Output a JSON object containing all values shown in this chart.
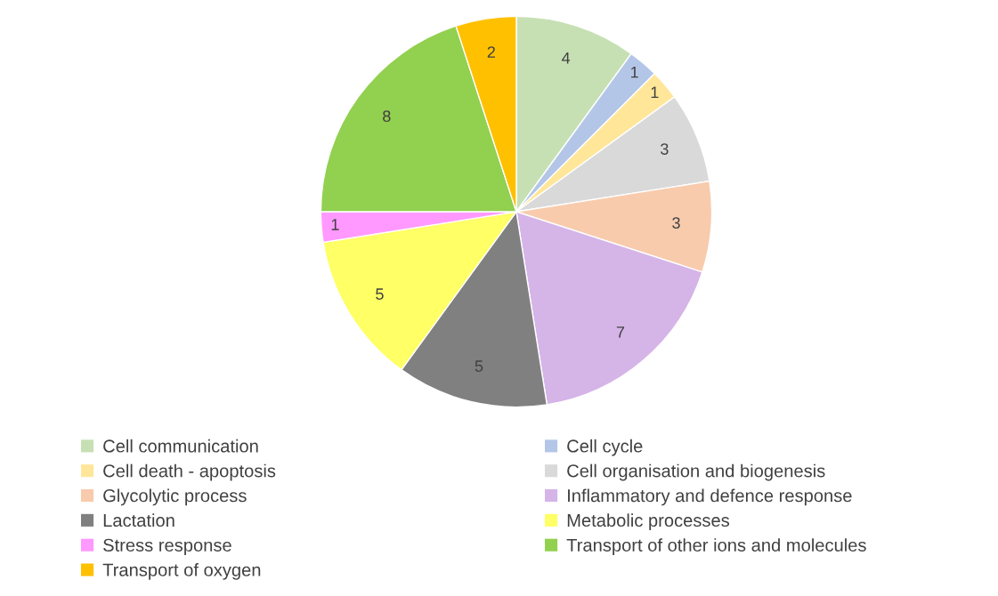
{
  "chart_data": {
    "type": "pie",
    "categories": [
      "Cell communication",
      "Cell cycle",
      "Cell death - apoptosis",
      "Cell organisation and biogenesis",
      "Glycolytic process",
      "Inflammatory and defence response",
      "Lactation",
      "Metabolic processes",
      "Stress response",
      "Transport of other ions and molecules",
      "Transport of oxygen"
    ],
    "values": [
      4,
      1,
      1,
      3,
      3,
      7,
      5,
      5,
      1,
      8,
      2
    ],
    "colors": [
      "#c6e0b4",
      "#b4c6e7",
      "#ffe699",
      "#d9d9d9",
      "#f8cbad",
      "#d5b4e8",
      "#808080",
      "#ffff66",
      "#ff99ff",
      "#92d050",
      "#ffc000"
    ],
    "data_labels": true,
    "legend": "bottom"
  }
}
